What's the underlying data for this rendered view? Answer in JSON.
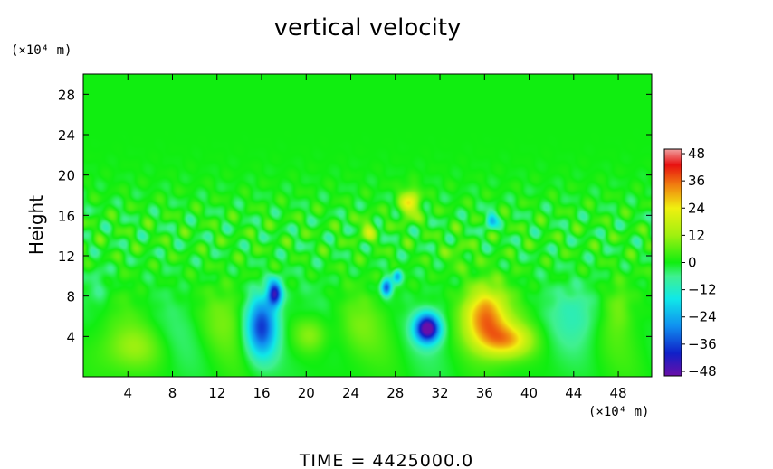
{
  "chart_data": {
    "type": "heatmap",
    "title": "vertical velocity",
    "ylabel": "Height",
    "y_unit": "(×10⁴ m)",
    "x_unit": "(×10⁴ m)",
    "x_ticks": [
      4,
      8,
      12,
      16,
      20,
      24,
      28,
      32,
      36,
      40,
      44,
      48
    ],
    "y_ticks": [
      4,
      8,
      12,
      16,
      20,
      24,
      28
    ],
    "xlim": [
      0,
      51
    ],
    "ylim": [
      0,
      30
    ],
    "colorbar": {
      "ticks": [
        48,
        36,
        24,
        12,
        0,
        -12,
        -24,
        -36,
        -48
      ],
      "range": [
        -50,
        50
      ]
    },
    "features": [
      {
        "x": 16,
        "y": 5,
        "sx": 1.0,
        "sy": 2.2,
        "value": -38
      },
      {
        "x": 17.2,
        "y": 8.3,
        "sx": 0.45,
        "sy": 0.9,
        "value": -40
      },
      {
        "x": 27.2,
        "y": 8.8,
        "sx": 0.35,
        "sy": 0.6,
        "value": -34
      },
      {
        "x": 28.2,
        "y": 10,
        "sx": 0.3,
        "sy": 0.5,
        "value": -25
      },
      {
        "x": 30.9,
        "y": 4.8,
        "sx": 0.8,
        "sy": 1.0,
        "value": -52
      },
      {
        "x": 36.0,
        "y": 6.0,
        "sx": 1.4,
        "sy": 2.0,
        "value": 34
      },
      {
        "x": 38.0,
        "y": 3.6,
        "sx": 1.6,
        "sy": 1.2,
        "value": 26
      },
      {
        "x": 29.3,
        "y": 17.2,
        "sx": 0.6,
        "sy": 1.0,
        "value": 24
      },
      {
        "x": 36.6,
        "y": 15.5,
        "sx": 0.35,
        "sy": 0.6,
        "value": -22
      },
      {
        "x": 20.4,
        "y": 4.2,
        "sx": 1.1,
        "sy": 1.3,
        "value": 12
      },
      {
        "x": 4.5,
        "y": 2.8,
        "sx": 2.0,
        "sy": 1.6,
        "value": 9
      },
      {
        "x": 12.5,
        "y": 6.0,
        "sx": 1.5,
        "sy": 2.2,
        "value": 6
      },
      {
        "x": 24.5,
        "y": 5.0,
        "sx": 1.3,
        "sy": 2.0,
        "value": 5
      },
      {
        "x": 44.5,
        "y": 6.5,
        "sx": 1.5,
        "sy": 2.0,
        "value": -8
      },
      {
        "x": 48.0,
        "y": 7.0,
        "sx": 0.8,
        "sy": 1.8,
        "value": 7
      },
      {
        "x": 25.5,
        "y": 14.5,
        "sx": 0.5,
        "sy": 0.8,
        "value": 14
      },
      {
        "x": 1.5,
        "y": 9.0,
        "sx": 0.8,
        "sy": 1.5,
        "value": -6
      },
      {
        "x": 33.5,
        "y": 12.0,
        "sx": 1.0,
        "sy": 1.2,
        "value": 5
      }
    ]
  },
  "footer": {
    "time_label": "TIME  =  4425000.0"
  }
}
